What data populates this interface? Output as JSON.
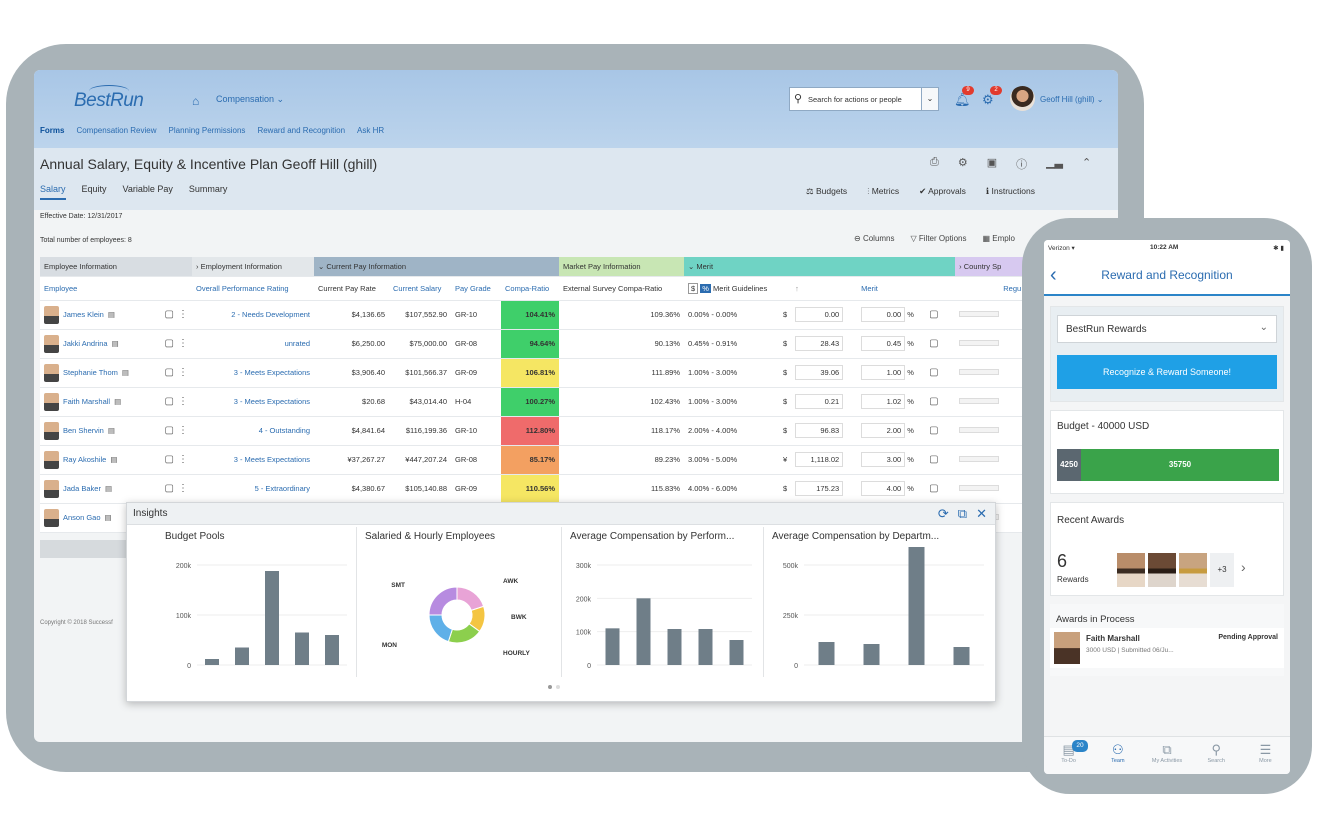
{
  "shell": {
    "logo": "BestRun",
    "module": "Compensation ⌄",
    "subnav": [
      "Forms",
      "Compensation Review",
      "Planning Permissions",
      "Reward and Recognition",
      "Ask HR"
    ],
    "search_placeholder": "Search for actions or people",
    "user_name": "Geoff Hill (ghill) ⌄"
  },
  "page": {
    "title": "Annual Salary, Equity & Incentive Plan Geoff Hill (ghill)",
    "tabs": [
      "Salary",
      "Equity",
      "Variable Pay",
      "Summary"
    ],
    "actions": [
      "Budgets",
      "Metrics",
      "Approvals",
      "Instructions"
    ],
    "effective_date": "Effective Date: 12/31/2017",
    "total": "Total number of employees: 8",
    "grid_tools": [
      "Columns",
      "Filter Options",
      "Emplo"
    ]
  },
  "grid": {
    "groups": [
      "Employee Information",
      "Employment Information",
      "Current Pay Information",
      "Market Pay Information",
      "Merit",
      "Country Sp"
    ],
    "columns": [
      "Employee",
      "Overall Performance Rating",
      "Current Pay Rate",
      "Current Salary",
      "Pay Grade",
      "Compa-Ratio",
      "External Survey Compa-Ratio",
      "Merit Guidelines",
      "Merit",
      "Regu"
    ],
    "rows": [
      {
        "name": "James Klein",
        "rating": "2 - Needs Development",
        "rate": "$4,136.65",
        "salary": "$107,552.90",
        "grade": "GR-10",
        "compa": "104.41%",
        "compa_color": "#3fcf6a",
        "ext": "109.36%",
        "guide": "0.00% - 0.00%",
        "cur": "$",
        "merit_amt": "0.00",
        "merit_pct": "0.00",
        "pct": "%"
      },
      {
        "name": "Jakki Andrina",
        "rating": "unrated",
        "rate": "$6,250.00",
        "salary": "$75,000.00",
        "grade": "GR-08",
        "compa": "94.64%",
        "compa_color": "#3fcf6a",
        "ext": "90.13%",
        "guide": "0.45% - 0.91%",
        "cur": "$",
        "merit_amt": "28.43",
        "merit_pct": "0.45",
        "pct": "%"
      },
      {
        "name": "Stephanie Thom",
        "rating": "3 - Meets Expectations",
        "rate": "$3,906.40",
        "salary": "$101,566.37",
        "grade": "GR-09",
        "compa": "106.81%",
        "compa_color": "#f5e663",
        "ext": "111.89%",
        "guide": "1.00% - 3.00%",
        "cur": "$",
        "merit_amt": "39.06",
        "merit_pct": "1.00",
        "pct": "%"
      },
      {
        "name": "Faith Marshall",
        "rating": "3 - Meets Expectations",
        "rate": "$20.68",
        "salary": "$43,014.40",
        "grade": "H-04",
        "compa": "100.27%",
        "compa_color": "#3fcf6a",
        "ext": "102.43%",
        "guide": "1.00% - 3.00%",
        "cur": "$",
        "merit_amt": "0.21",
        "merit_pct": "1.02",
        "pct": "%"
      },
      {
        "name": "Ben Shervin",
        "rating": "4 - Outstanding",
        "rate": "$4,841.64",
        "salary": "$116,199.36",
        "grade": "GR-10",
        "compa": "112.80%",
        "compa_color": "#ef6b6b",
        "ext": "118.17%",
        "guide": "2.00% - 4.00%",
        "cur": "$",
        "merit_amt": "96.83",
        "merit_pct": "2.00",
        "pct": "%"
      },
      {
        "name": "Ray Akoshile",
        "rating": "3 - Meets Expectations",
        "rate": "¥37,267.27",
        "salary": "¥447,207.24",
        "grade": "GR-08",
        "compa": "85.17%",
        "compa_color": "#f3a061",
        "ext": "89.23%",
        "guide": "3.00% - 5.00%",
        "cur": "¥",
        "merit_amt": "1,118.02",
        "merit_pct": "3.00",
        "pct": "%"
      },
      {
        "name": "Jada Baker",
        "rating": "5 - Extraordinary",
        "rate": "$4,380.67",
        "salary": "$105,140.88",
        "grade": "GR-09",
        "compa": "110.56%",
        "compa_color": "#f5e663",
        "ext": "115.83%",
        "guide": "4.00% - 6.00%",
        "cur": "$",
        "merit_amt": "175.23",
        "merit_pct": "4.00",
        "pct": "%"
      },
      {
        "name": "Anson Gao",
        "rating": "",
        "rate": "",
        "salary": "",
        "grade": "",
        "compa": "",
        "compa_color": "#ffffff",
        "ext": "",
        "guide": "",
        "cur": "",
        "merit_amt": "",
        "merit_pct": "",
        "pct": ""
      }
    ]
  },
  "insights": {
    "title": "Insights",
    "copyright": "Copyright © 2018 Successf",
    "charts": [
      {
        "title": "Budget Pools"
      },
      {
        "title": "Salaried & Hourly Employees"
      },
      {
        "title": "Average Compensation by Perform..."
      },
      {
        "title": "Average Compensation by Departm..."
      }
    ]
  },
  "chart_data": [
    {
      "type": "bar",
      "title": "Budget Pools",
      "yticks": [
        "200k",
        "100k",
        "0"
      ],
      "ylim": [
        0,
        200000
      ],
      "values": [
        12000,
        35000,
        188000,
        65000,
        60000
      ]
    },
    {
      "type": "pie",
      "title": "Salaried & Hourly Employees",
      "labels": [
        "SMT",
        "AWK",
        "BWK",
        "HOURLY",
        "MON"
      ],
      "values": [
        20,
        15,
        20,
        20,
        25
      ],
      "colors": [
        "#e8a3d6",
        "#f4c542",
        "#8ccf4d",
        "#5fb0e8",
        "#b78be0"
      ]
    },
    {
      "type": "bar",
      "title": "Average Compensation by Perform...",
      "yticks": [
        "300k",
        "200k",
        "100k",
        "0"
      ],
      "ylim": [
        0,
        300000
      ],
      "values": [
        110000,
        200000,
        108000,
        108000,
        75000
      ]
    },
    {
      "type": "bar",
      "title": "Average Compensation by Departm...",
      "yticks": [
        "500k",
        "250k",
        "0"
      ],
      "ylim": [
        0,
        500000
      ],
      "values": [
        115000,
        105000,
        590000,
        90000
      ]
    }
  ],
  "phone": {
    "carrier": "Verizon ▾",
    "time": "10:22 AM",
    "battery": "✱ ▮",
    "title": "Reward and Recognition",
    "program": "BestRun Rewards",
    "cta": "Recognize & Reward Someone!",
    "budget_label": "Budget - 40000 USD",
    "budget_used": "4250",
    "budget_remaining": "35750",
    "recent_label": "Recent Awards",
    "recent_count": "6",
    "recent_unit": "Rewards",
    "more": "+3",
    "process_label": "Awards in Process",
    "process_name": "Faith Marshall",
    "process_detail": "3000 USD | Submitted 06/Ju...",
    "process_status": "Pending Approval",
    "todo_badge": "20",
    "tabs": [
      "To-Do",
      "Team",
      "My Activities",
      "Search",
      "More"
    ]
  }
}
